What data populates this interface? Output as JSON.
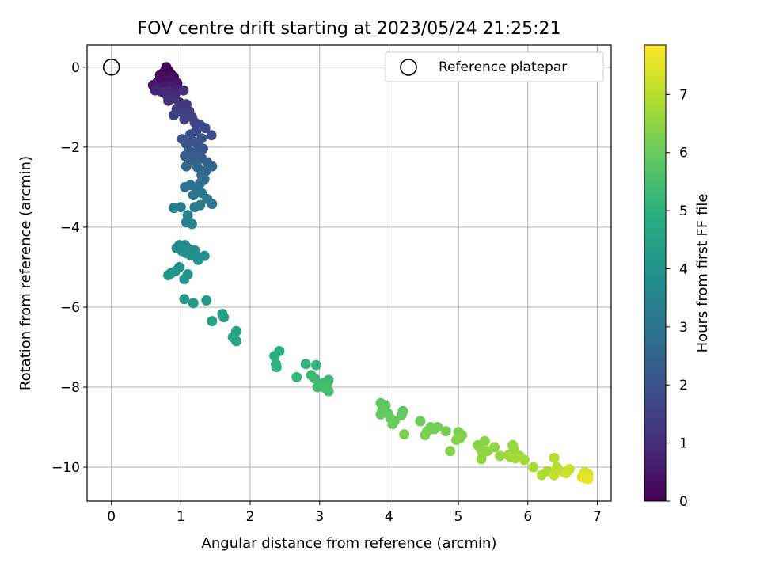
{
  "chart_data": {
    "type": "scatter",
    "title": "FOV centre drift starting at 2023/05/24 21:25:21",
    "xlabel": "Angular distance from reference (arcmin)",
    "ylabel": "Rotation from reference (arcmin)",
    "colorbar_label": "Hours from first FF file",
    "xlim": [
      -0.35,
      7.2
    ],
    "ylim": [
      -10.85,
      0.55
    ],
    "clim": [
      0,
      7.85
    ],
    "colormap": "viridis",
    "grid": true,
    "legend_location": "top-right",
    "xticks": [
      0,
      1,
      2,
      3,
      4,
      5,
      6,
      7
    ],
    "xtick_labels": [
      "0",
      "1",
      "2",
      "3",
      "4",
      "5",
      "6",
      "7"
    ],
    "yticks": [
      0,
      -2,
      -4,
      -6,
      -8,
      -10
    ],
    "ytick_labels": [
      "0",
      "−2",
      "−4",
      "−6",
      "−8",
      "−10"
    ],
    "cticks": [
      0,
      1,
      2,
      3,
      4,
      5,
      6,
      7
    ],
    "ctick_labels": [
      "0",
      "1",
      "2",
      "3",
      "4",
      "5",
      "6",
      "7"
    ],
    "reference": {
      "name": "Reference platepar",
      "x": 0,
      "y": 0
    },
    "series": [
      {
        "points": [
          [
            0.79,
            0.0,
            0.0
          ],
          [
            0.82,
            -0.08,
            0.05
          ],
          [
            0.76,
            -0.12,
            0.1
          ],
          [
            0.86,
            -0.18,
            0.15
          ],
          [
            0.7,
            -0.2,
            0.2
          ],
          [
            0.9,
            -0.25,
            0.25
          ],
          [
            0.74,
            -0.3,
            0.3
          ],
          [
            0.84,
            -0.33,
            0.35
          ],
          [
            0.66,
            -0.38,
            0.4
          ],
          [
            0.95,
            -0.4,
            0.45
          ],
          [
            0.6,
            -0.45,
            0.5
          ],
          [
            0.78,
            -0.47,
            0.55
          ],
          [
            0.88,
            -0.5,
            0.6
          ],
          [
            0.68,
            -0.52,
            0.65
          ],
          [
            0.97,
            -0.55,
            0.7
          ],
          [
            0.63,
            -0.58,
            0.75
          ],
          [
            0.83,
            -0.6,
            0.8
          ],
          [
            0.73,
            -0.62,
            0.85
          ],
          [
            0.92,
            -0.66,
            0.9
          ],
          [
            0.8,
            -0.7,
            0.95
          ],
          [
            0.9,
            -0.78,
            1.0
          ],
          [
            1.04,
            -0.58,
            1.05
          ],
          [
            0.82,
            -0.84,
            1.1
          ],
          [
            0.98,
            -0.88,
            1.15
          ],
          [
            1.08,
            -0.93,
            1.2
          ],
          [
            1.0,
            -1.0,
            1.25
          ],
          [
            0.94,
            -1.05,
            1.3
          ],
          [
            1.12,
            -1.1,
            1.35
          ],
          [
            1.03,
            -1.14,
            1.4
          ],
          [
            0.9,
            -1.2,
            1.45
          ],
          [
            1.16,
            -1.25,
            1.5
          ],
          [
            1.05,
            -1.3,
            1.55
          ],
          [
            1.2,
            -1.38,
            1.6
          ],
          [
            1.28,
            -1.45,
            1.65
          ],
          [
            1.35,
            -1.52,
            1.7
          ],
          [
            1.22,
            -1.6,
            1.75
          ],
          [
            1.44,
            -1.7,
            1.8
          ],
          [
            1.14,
            -1.68,
            1.85
          ],
          [
            1.3,
            -1.78,
            1.9
          ],
          [
            1.02,
            -1.8,
            1.95
          ],
          [
            1.18,
            -1.86,
            2.0
          ],
          [
            1.08,
            -1.92,
            2.05
          ],
          [
            1.25,
            -1.98,
            2.1
          ],
          [
            1.32,
            -2.04,
            2.15
          ],
          [
            1.12,
            -2.1,
            2.2
          ],
          [
            1.22,
            -2.16,
            2.25
          ],
          [
            1.06,
            -2.22,
            2.3
          ],
          [
            1.3,
            -2.28,
            2.35
          ],
          [
            1.18,
            -2.32,
            2.4
          ],
          [
            1.38,
            -2.38,
            2.45
          ],
          [
            1.45,
            -2.48,
            2.5
          ],
          [
            1.08,
            -2.48,
            2.55
          ],
          [
            1.24,
            -2.5,
            2.6
          ],
          [
            1.36,
            -2.6,
            2.65
          ],
          [
            1.3,
            -2.7,
            2.7
          ],
          [
            1.34,
            -2.8,
            2.75
          ],
          [
            1.28,
            -2.9,
            2.8
          ],
          [
            1.14,
            -2.95,
            2.85
          ],
          [
            1.06,
            -3.0,
            2.9
          ],
          [
            1.24,
            -3.05,
            2.95
          ],
          [
            1.3,
            -3.15,
            3.0
          ],
          [
            1.18,
            -3.2,
            3.05
          ],
          [
            1.38,
            -3.3,
            3.1
          ],
          [
            1.45,
            -3.42,
            3.15
          ],
          [
            1.28,
            -3.45,
            3.2
          ],
          [
            1.0,
            -3.5,
            3.25
          ],
          [
            1.2,
            -3.5,
            3.3
          ],
          [
            0.9,
            -3.52,
            3.35
          ],
          [
            1.1,
            -3.7,
            3.4
          ],
          [
            1.08,
            -3.88,
            3.45
          ],
          [
            1.16,
            -3.92,
            3.5
          ],
          [
            0.98,
            -4.45,
            3.55
          ],
          [
            1.06,
            -4.45,
            3.6
          ],
          [
            0.94,
            -4.52,
            3.65
          ],
          [
            1.12,
            -4.55,
            3.7
          ],
          [
            1.2,
            -4.58,
            3.75
          ],
          [
            1.02,
            -4.6,
            3.8
          ],
          [
            1.08,
            -4.65,
            3.85
          ],
          [
            1.14,
            -4.7,
            3.85
          ],
          [
            1.22,
            -4.72,
            3.9
          ],
          [
            1.34,
            -4.72,
            3.9
          ],
          [
            1.25,
            -4.82,
            3.95
          ],
          [
            0.98,
            -5.0,
            3.95
          ],
          [
            0.92,
            -5.1,
            4.0
          ],
          [
            0.86,
            -5.15,
            4.0
          ],
          [
            1.1,
            -5.18,
            4.05
          ],
          [
            0.82,
            -5.2,
            4.05
          ],
          [
            1.05,
            -5.3,
            4.1
          ],
          [
            1.05,
            -5.8,
            4.15
          ],
          [
            1.37,
            -5.83,
            4.2
          ],
          [
            1.18,
            -5.9,
            4.25
          ],
          [
            1.6,
            -6.17,
            4.35
          ],
          [
            1.62,
            -6.25,
            4.4
          ],
          [
            1.45,
            -6.35,
            4.45
          ],
          [
            1.8,
            -6.6,
            4.55
          ],
          [
            1.75,
            -6.75,
            4.6
          ],
          [
            1.8,
            -6.85,
            4.65
          ],
          [
            2.42,
            -7.1,
            4.9
          ],
          [
            2.35,
            -7.22,
            4.95
          ],
          [
            2.37,
            -7.42,
            5.0
          ],
          [
            2.38,
            -7.5,
            5.05
          ],
          [
            2.8,
            -7.42,
            5.1
          ],
          [
            2.95,
            -7.45,
            5.15
          ],
          [
            2.67,
            -7.75,
            5.2
          ],
          [
            2.88,
            -7.7,
            5.25
          ],
          [
            2.93,
            -7.78,
            5.3
          ],
          [
            3.13,
            -7.82,
            5.35
          ],
          [
            3.05,
            -7.9,
            5.35
          ],
          [
            3.1,
            -7.95,
            5.4
          ],
          [
            2.97,
            -8.0,
            5.4
          ],
          [
            3.08,
            -8.02,
            5.45
          ],
          [
            3.13,
            -8.1,
            5.45
          ],
          [
            3.88,
            -8.4,
            5.8
          ],
          [
            3.95,
            -8.45,
            5.82
          ],
          [
            3.9,
            -8.6,
            5.85
          ],
          [
            3.98,
            -8.65,
            5.88
          ],
          [
            4.2,
            -8.6,
            5.9
          ],
          [
            4.18,
            -8.7,
            5.92
          ],
          [
            3.88,
            -8.68,
            5.95
          ],
          [
            4.02,
            -8.78,
            5.97
          ],
          [
            4.08,
            -8.85,
            6.0
          ],
          [
            4.05,
            -8.92,
            6.02
          ],
          [
            4.45,
            -8.85,
            6.05
          ],
          [
            4.6,
            -9.0,
            6.1
          ],
          [
            4.7,
            -9.0,
            6.12
          ],
          [
            4.65,
            -9.05,
            6.15
          ],
          [
            4.55,
            -9.1,
            6.18
          ],
          [
            4.82,
            -9.1,
            6.2
          ],
          [
            4.22,
            -9.18,
            6.22
          ],
          [
            4.52,
            -9.2,
            6.25
          ],
          [
            5.0,
            -9.12,
            6.28
          ],
          [
            5.05,
            -9.2,
            6.3
          ],
          [
            5.02,
            -9.28,
            6.32
          ],
          [
            4.88,
            -9.6,
            6.35
          ],
          [
            4.97,
            -9.32,
            6.38
          ],
          [
            5.28,
            -9.45,
            6.4
          ],
          [
            5.38,
            -9.35,
            6.42
          ],
          [
            5.32,
            -9.55,
            6.45
          ],
          [
            5.42,
            -9.6,
            6.48
          ],
          [
            5.35,
            -9.65,
            6.5
          ],
          [
            5.52,
            -9.5,
            6.52
          ],
          [
            5.33,
            -9.8,
            6.55
          ],
          [
            5.6,
            -9.72,
            6.58
          ],
          [
            5.78,
            -9.45,
            6.6
          ],
          [
            5.8,
            -9.55,
            6.62
          ],
          [
            5.72,
            -9.7,
            6.65
          ],
          [
            5.75,
            -9.75,
            6.68
          ],
          [
            5.88,
            -9.72,
            6.7
          ],
          [
            5.82,
            -9.78,
            6.72
          ],
          [
            5.95,
            -9.82,
            6.75
          ],
          [
            6.08,
            -10.0,
            6.8
          ],
          [
            6.28,
            -10.1,
            6.85
          ],
          [
            6.2,
            -10.2,
            6.9
          ],
          [
            6.38,
            -9.77,
            6.95
          ],
          [
            6.42,
            -10.0,
            7.0
          ],
          [
            6.45,
            -10.08,
            7.05
          ],
          [
            6.52,
            -10.12,
            7.1
          ],
          [
            6.38,
            -10.2,
            7.15
          ],
          [
            6.6,
            -10.05,
            7.2
          ],
          [
            6.55,
            -10.15,
            7.25
          ],
          [
            6.82,
            -10.12,
            7.35
          ],
          [
            6.87,
            -10.18,
            7.4
          ],
          [
            6.8,
            -10.2,
            7.45
          ],
          [
            6.78,
            -10.25,
            7.5
          ],
          [
            6.82,
            -10.28,
            7.55
          ],
          [
            6.87,
            -10.3,
            7.6
          ]
        ]
      }
    ]
  }
}
